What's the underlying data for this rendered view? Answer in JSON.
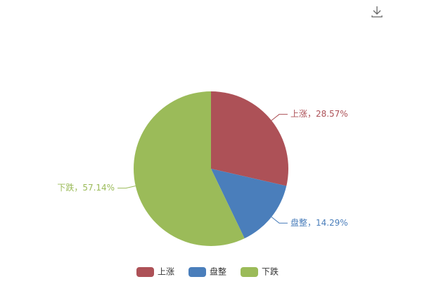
{
  "chart_data": {
    "type": "pie",
    "categories": [
      "上涨",
      "盘整",
      "下跌"
    ],
    "values": [
      28.57,
      14.29,
      57.14
    ],
    "value_labels": [
      "上涨，28.57%",
      "盘整，14.29%",
      "下跌，57.14%"
    ],
    "colors": [
      "#ad5157",
      "#4a7ebb",
      "#9bbb59"
    ],
    "legend": "bottom"
  }
}
